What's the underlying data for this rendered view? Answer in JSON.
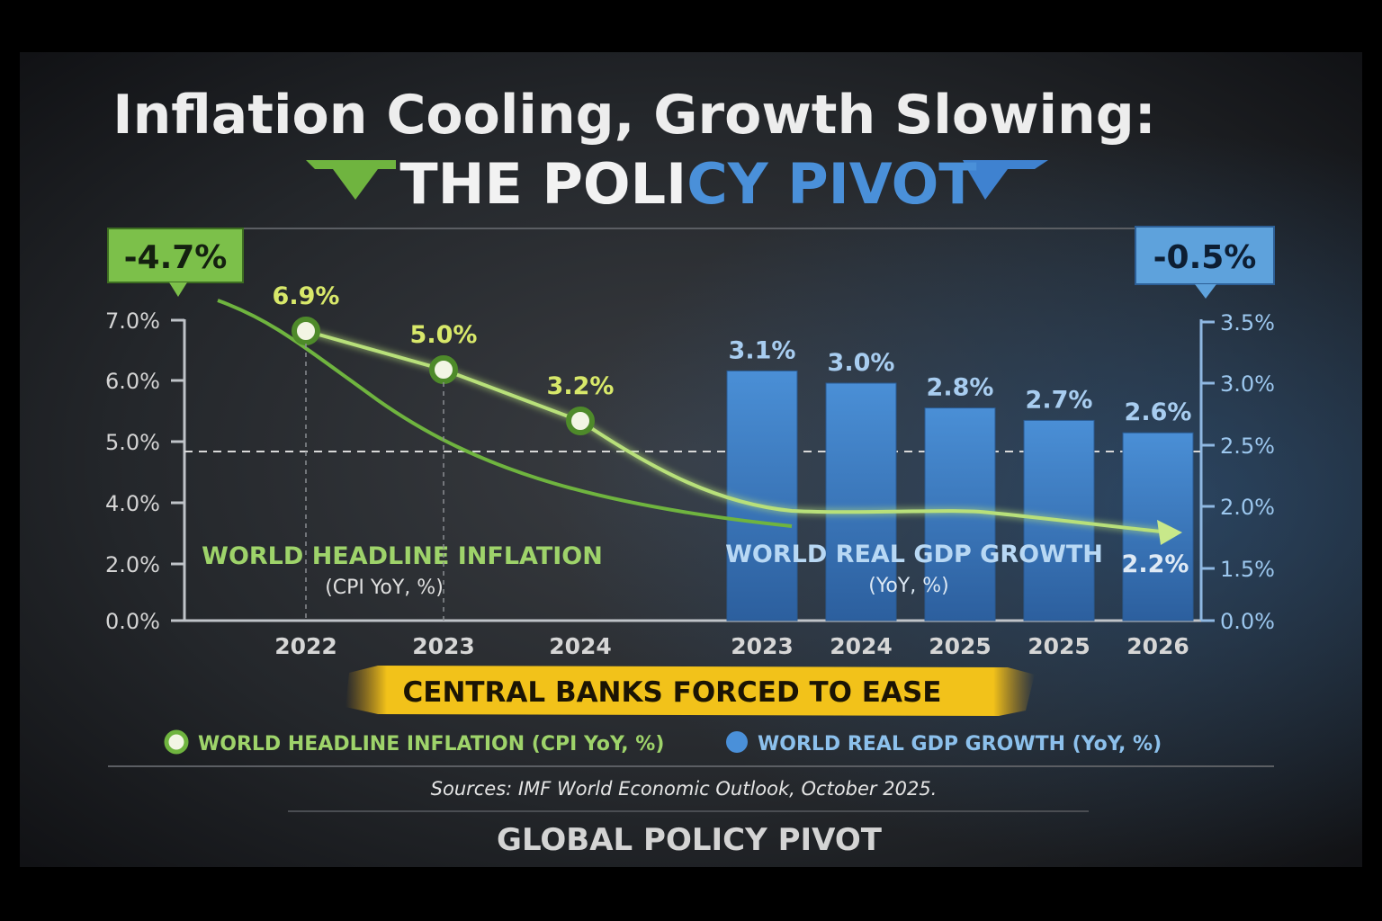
{
  "header": {
    "title": "Inflation Cooling, Growth Slowing:",
    "subtitle_part1": "THE POLI",
    "subtitle_part2": "CY PIVOT"
  },
  "callouts": {
    "left": "-4.7%",
    "right": "-0.5%"
  },
  "banner": "CENTRAL BANKS FORCED TO EASE",
  "legend": {
    "inflation": "WORLD HEADLINE INFLATION (CPI YoY, %)",
    "gdp": "WORLD REAL GDP GROWTH (YoY, %)"
  },
  "source": "Sources: IMF World Economic Outlook, October 2025.",
  "footer": "GLOBAL POLICY PIVOT",
  "colors": {
    "inflation": "#8fd14f",
    "inflation_label": "#d8e86a",
    "gdp": "#3f7fc8",
    "gdp_label": "#9cc7ee",
    "banner": "#f0c419",
    "callout_left_bg": "#7cc04a",
    "callout_right_bg": "#5ea2dc"
  },
  "chart_data": [
    {
      "type": "line",
      "series": [
        {
          "name": "WORLD HEADLINE INFLATION",
          "x": [
            "2022",
            "2023",
            "2024"
          ],
          "values": [
            6.9,
            5.0,
            3.2
          ]
        }
      ],
      "series_label": "WORLD HEADLINE INFLATION",
      "series_unit": "(CPI YoY, %)",
      "y_ticks": [
        "0.0%",
        "2.0%",
        "4.0%",
        "5.0%",
        "6.0%",
        "7.0%"
      ],
      "y_tick_values": [
        0,
        2,
        4,
        5,
        6,
        7
      ],
      "data_labels": [
        "6.9%",
        "5.0%",
        "3.2%"
      ],
      "grid": false
    },
    {
      "type": "bar",
      "categories": [
        "2023",
        "2024",
        "2025",
        "2025",
        "2026"
      ],
      "values": [
        3.1,
        3.0,
        2.8,
        2.7,
        2.6
      ],
      "data_labels": [
        "3.1%",
        "3.0%",
        "2.8%",
        "2.7%",
        "2.6%"
      ],
      "series_label": "WORLD REAL GDP GROWTH",
      "series_unit": "(YoY, %)",
      "trend_end_label": "2.2%",
      "y_ticks": [
        "0.0%",
        "1.5%",
        "2.0%",
        "2.5%",
        "3.0%",
        "3.5%"
      ],
      "y_tick_values": [
        0,
        1.5,
        2.0,
        2.5,
        3.0,
        3.5
      ],
      "axis_side": "right"
    }
  ]
}
